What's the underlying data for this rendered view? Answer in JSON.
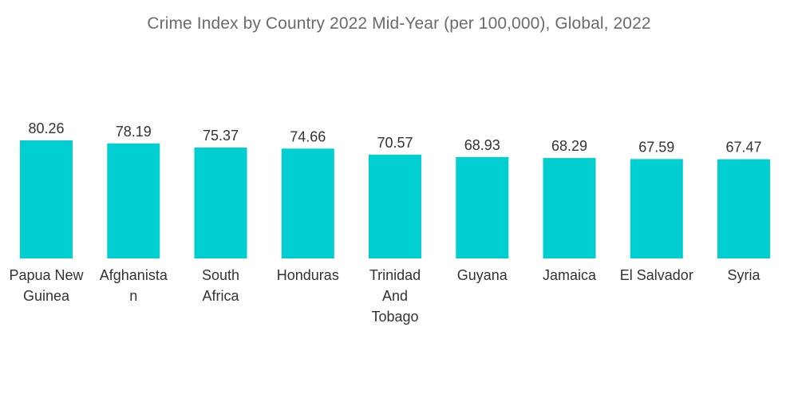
{
  "chart_data": {
    "type": "bar",
    "title": "Crime Index by Country 2022 Mid-Year (per 100,000), Global, 2022",
    "categories": [
      [
        "Papua New",
        "Guinea"
      ],
      [
        "Afghanista",
        "n"
      ],
      [
        "South",
        "Africa"
      ],
      [
        "Honduras"
      ],
      [
        "Trinidad",
        "And",
        "Tobago"
      ],
      [
        "Guyana"
      ],
      [
        "Jamaica"
      ],
      [
        "El Salvador"
      ],
      [
        "Syria"
      ]
    ],
    "values": [
      80.26,
      78.19,
      75.37,
      74.66,
      70.57,
      68.93,
      68.29,
      67.59,
      67.47
    ],
    "value_labels": [
      "80.26",
      "78.19",
      "75.37",
      "74.66",
      "70.57",
      "68.93",
      "68.29",
      "67.59",
      "67.47"
    ],
    "xlabel": "",
    "ylabel": "",
    "ylim": [
      0,
      80.26
    ],
    "grid": false,
    "bar_color": "#00ced1"
  }
}
